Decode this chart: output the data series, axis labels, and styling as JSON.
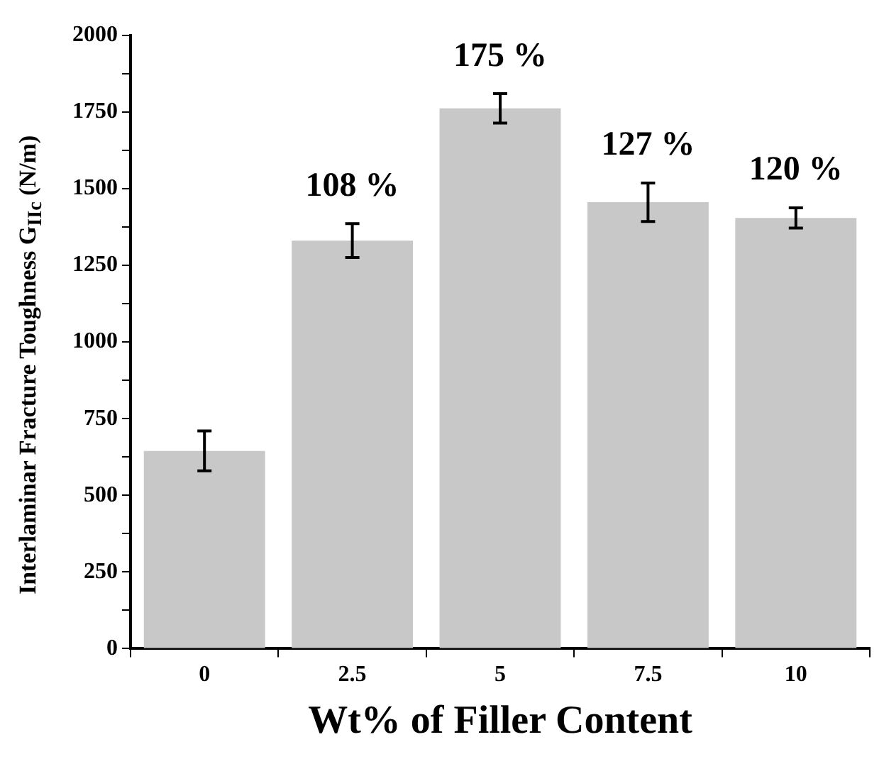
{
  "chart_data": {
    "type": "bar",
    "xlabel": "Wt% of Filler Content",
    "ylabel": "Interlaminar Fracture Toughness  G$_{IIc}$ (N/m)",
    "categories": [
      "0",
      "2.5",
      "5",
      "7.5",
      "10"
    ],
    "values": [
      645,
      1331,
      1762,
      1456,
      1405
    ],
    "errors": [
      65,
      55,
      48,
      63,
      33
    ],
    "color": "#c8c8c8",
    "ylim": [
      0,
      2000
    ],
    "yticks": [
      0,
      {
        "value": 125,
        "label": null
      },
      250,
      {
        "value": 375,
        "label": null
      },
      500,
      {
        "value": 625,
        "label": null
      },
      750,
      {
        "value": 875,
        "label": null
      },
      1000,
      {
        "value": 1125,
        "label": null
      },
      1250,
      {
        "value": 1375,
        "label": null
      },
      1500,
      {
        "value": 1625,
        "label": null
      },
      1750,
      {
        "value": 1875,
        "label": null
      },
      2000
    ],
    "annotations": [
      "108 %",
      "175 %",
      "127 %",
      "120 %"
    ]
  }
}
